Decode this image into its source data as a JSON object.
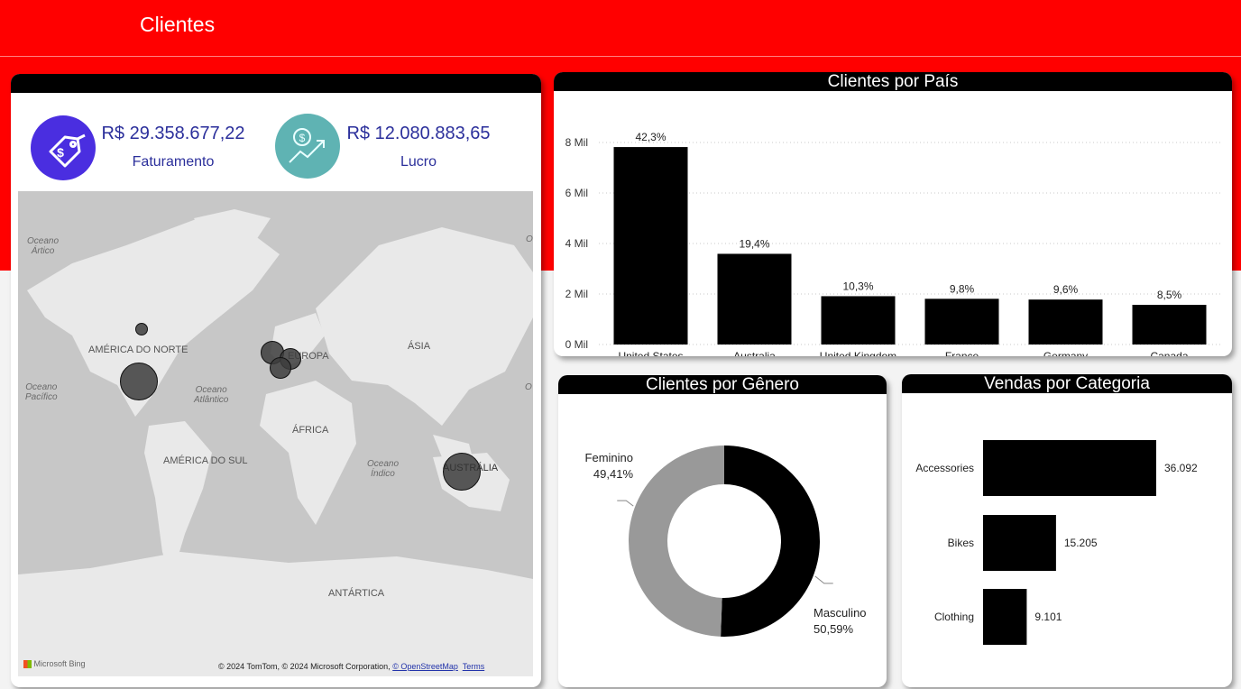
{
  "header": {
    "title": "Clientes"
  },
  "kpis": {
    "faturamento": {
      "value": "R$ 29.358.677,22",
      "label": "Faturamento",
      "icon": "price-tag-icon",
      "color": "#4a2ee0"
    },
    "lucro": {
      "value": "R$ 12.080.883,65",
      "label": "Lucro",
      "icon": "profit-growth-icon",
      "color": "#5fb3b3"
    }
  },
  "map": {
    "continents": [
      "AMÉRICA DO NORTE",
      "EUROPA",
      "ÁSIA",
      "ÁFRICA",
      "AMÉRICA DO SUL",
      "AUSTRÁLIA",
      "ANTÁRTICA"
    ],
    "oceans": [
      "Oceano\nÁrtico",
      "Oceano\nPacífico",
      "Oceano\nAtlântico",
      "Oceano\nÍndico",
      "O",
      "O"
    ],
    "copyright": "© 2024 TomTom, © 2024 Microsoft Corporation,",
    "osm_link": "© OpenStreetMap",
    "terms_link": "Terms",
    "provider": "Microsoft Bing"
  },
  "country_chart": {
    "title": "Clientes por País",
    "chart_data": {
      "type": "bar",
      "categories": [
        "United States",
        "Australia",
        "United Kingdom",
        "France",
        "Germany",
        "Canada"
      ],
      "values": [
        7819,
        3591,
        1913,
        1810,
        1780,
        1571
      ],
      "data_labels": [
        "42,3%",
        "19,4%",
        "10,3%",
        "9,8%",
        "9,6%",
        "8,5%"
      ],
      "y_ticks": [
        0,
        2000,
        4000,
        6000,
        8000
      ],
      "y_tick_labels": [
        "0 Mil",
        "2 Mil",
        "4 Mil",
        "6 Mil",
        "8 Mil"
      ],
      "ylim": [
        0,
        8000
      ],
      "grid": true
    }
  },
  "gender_chart": {
    "title": "Clientes por Gênero",
    "chart_data": {
      "type": "pie",
      "donut": true,
      "labels": [
        "Masculino",
        "Feminino"
      ],
      "values": [
        50.59,
        49.41
      ],
      "value_labels": [
        "50,59%",
        "49,41%"
      ],
      "colors": [
        "#000000",
        "#999999"
      ]
    }
  },
  "category_chart": {
    "title": "Vendas por Categoria",
    "chart_data": {
      "type": "bar",
      "orientation": "horizontal",
      "categories": [
        "Accessories",
        "Bikes",
        "Clothing"
      ],
      "values": [
        36092,
        15205,
        9101
      ],
      "value_labels": [
        "36.092",
        "15.205",
        "9.101"
      ]
    }
  },
  "colors": {
    "header_red": "#ff0000",
    "bar": "#000000",
    "kpi_text": "#2b2f9b"
  }
}
